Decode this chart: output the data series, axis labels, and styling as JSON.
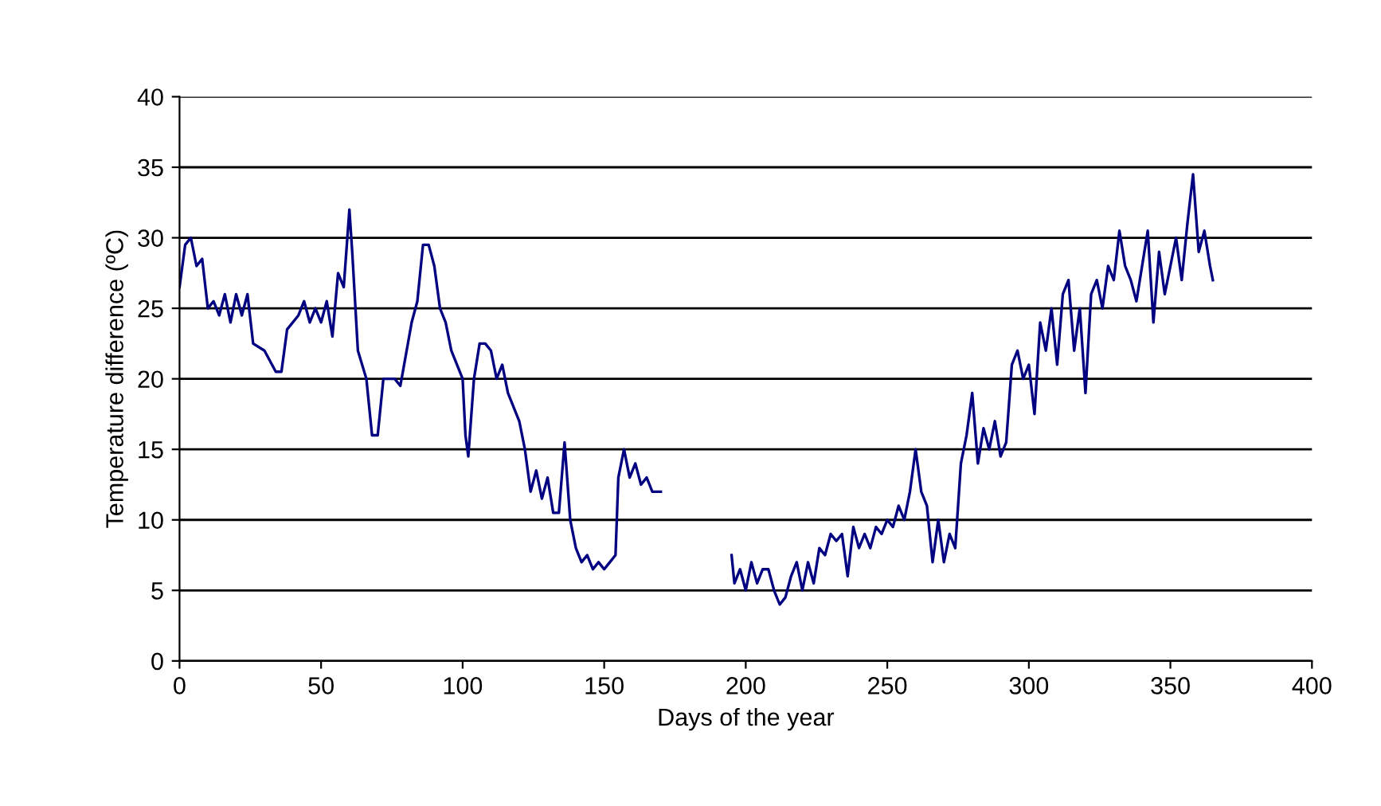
{
  "chart_data": {
    "type": "line",
    "xlabel": "Days of the year",
    "ylabel": "Temperature difference (ºC)",
    "xlim": [
      0,
      400
    ],
    "xticks": [
      0,
      50,
      100,
      150,
      200,
      250,
      300,
      350,
      400
    ],
    "ylim": [
      0,
      40
    ],
    "yticks": [
      0,
      5,
      10,
      15,
      20,
      25,
      30,
      35,
      40
    ],
    "grid": "y",
    "legend": false,
    "marker": "none",
    "line_style": "solid",
    "series": [
      {
        "color": "#000080",
        "x": [
          0,
          2,
          4,
          6,
          8,
          10,
          12,
          14,
          16,
          18,
          20,
          22,
          24,
          26,
          30,
          34,
          36,
          38,
          42,
          44,
          46,
          48,
          50,
          52,
          54,
          56,
          58,
          60,
          61,
          63,
          66,
          68,
          70,
          72,
          76,
          78,
          82,
          84,
          86,
          88,
          90,
          92,
          94,
          96,
          98,
          100,
          101,
          102,
          104,
          106,
          108,
          110,
          112,
          114,
          116,
          118,
          120,
          122,
          124,
          126,
          128,
          130,
          132,
          134,
          136,
          138,
          140,
          142,
          144,
          146,
          148,
          150,
          152,
          154,
          155,
          157,
          159,
          161,
          163,
          165,
          167,
          170,
          180,
          195,
          196,
          198,
          200,
          202,
          204,
          206,
          208,
          210,
          212,
          214,
          216,
          218,
          220,
          222,
          224,
          226,
          228,
          230,
          232,
          234,
          236,
          238,
          240,
          242,
          244,
          246,
          248,
          250,
          252,
          254,
          256,
          258,
          260,
          262,
          264,
          266,
          268,
          270,
          272,
          274,
          276,
          278,
          280,
          282,
          284,
          286,
          288,
          290,
          292,
          294,
          296,
          298,
          300,
          302,
          304,
          306,
          308,
          310,
          312,
          314,
          316,
          318,
          320,
          322,
          324,
          326,
          328,
          330,
          332,
          334,
          336,
          338,
          340,
          342,
          344,
          346,
          348,
          350,
          352,
          354,
          356,
          358,
          360,
          362,
          364,
          365
        ],
        "values": [
          26.5,
          29.5,
          30,
          28,
          28.5,
          25,
          25.5,
          24.5,
          26,
          24,
          26,
          24.5,
          26,
          22.5,
          22,
          20.5,
          20.5,
          23.5,
          24.5,
          25.5,
          24,
          25,
          24,
          25.5,
          23,
          27.5,
          26.5,
          32,
          29,
          22,
          20,
          16,
          16,
          20,
          20,
          19.5,
          24,
          25.5,
          29.5,
          29.5,
          28,
          25,
          24,
          22,
          21,
          20,
          16,
          14.5,
          20,
          22.5,
          22.5,
          22,
          20,
          21,
          19,
          18,
          17,
          15,
          12,
          13.5,
          11.5,
          13,
          10.5,
          10.5,
          15.5,
          10,
          8,
          7,
          7.5,
          6.5,
          7,
          6.5,
          7,
          7.5,
          13,
          15,
          13,
          14,
          12.5,
          13,
          12,
          12,
          null,
          7.5,
          5.5,
          6.5,
          5,
          7,
          5.5,
          6.5,
          6.5,
          5,
          4,
          4.5,
          6,
          7,
          5,
          7,
          5.5,
          8,
          7.5,
          9,
          8.5,
          9,
          6,
          9.5,
          8,
          9,
          8,
          9.5,
          9,
          10,
          9.5,
          11,
          10,
          12,
          15,
          12,
          11,
          7,
          10,
          7,
          9,
          8,
          14,
          16,
          19,
          14,
          16.5,
          15,
          17,
          14.5,
          15.5,
          21,
          22,
          20,
          21,
          17.5,
          24,
          22,
          25,
          21,
          26,
          27,
          22,
          25,
          19,
          26,
          27,
          25,
          28,
          27,
          30.5,
          28,
          27,
          25.5,
          28,
          30.5,
          24,
          29,
          26,
          28,
          30,
          27,
          31,
          34.5,
          29,
          30.5,
          28,
          27
        ]
      }
    ]
  }
}
